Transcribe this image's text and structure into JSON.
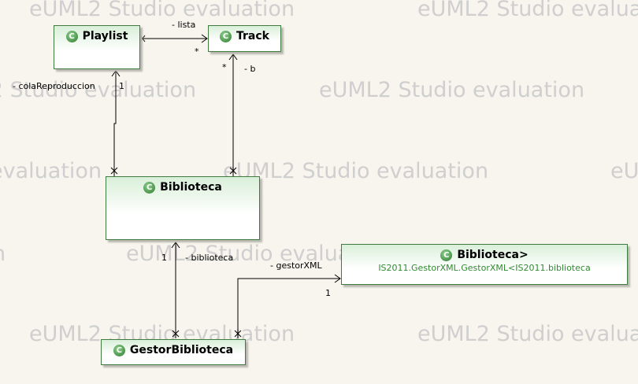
{
  "watermark": "eUML2 Studio evaluation",
  "watermark_partials": [
    "eUML2 Studio evaluation",
    "eU",
    "eUML2 Studio evalua"
  ],
  "classes": {
    "playlist": {
      "name": "Playlist",
      "icon": "class-icon"
    },
    "track": {
      "name": "Track",
      "icon": "class-icon"
    },
    "biblioteca": {
      "name": "Biblioteca",
      "icon": "class-icon"
    },
    "biblioteca_gen": {
      "name": "Biblioteca>",
      "subtitle": "IS2011.GestorXML.GestorXML<IS2011.biblioteca",
      "icon": "class-icon"
    },
    "gestor": {
      "name": "GestorBiblioteca",
      "icon": "class-icon"
    }
  },
  "class_icon_glyph": "C",
  "labels": {
    "lista": "- lista",
    "lista_mult": "*",
    "track_mult": "*",
    "b": "- b",
    "cola": "- colaReproduccion",
    "cola_mult": "1",
    "biblioteca_mult": "1",
    "biblioteca_role": "- biblioteca",
    "gestorxml": "- gestorXML",
    "gestorxml_mult": "1"
  },
  "colors": {
    "class_border": "#3f7a3f",
    "class_gradient_top": "#d9efd9",
    "subtitle_text": "#2f8a2f",
    "watermark": "#cfcfcf",
    "background": "#f8f5ee"
  }
}
